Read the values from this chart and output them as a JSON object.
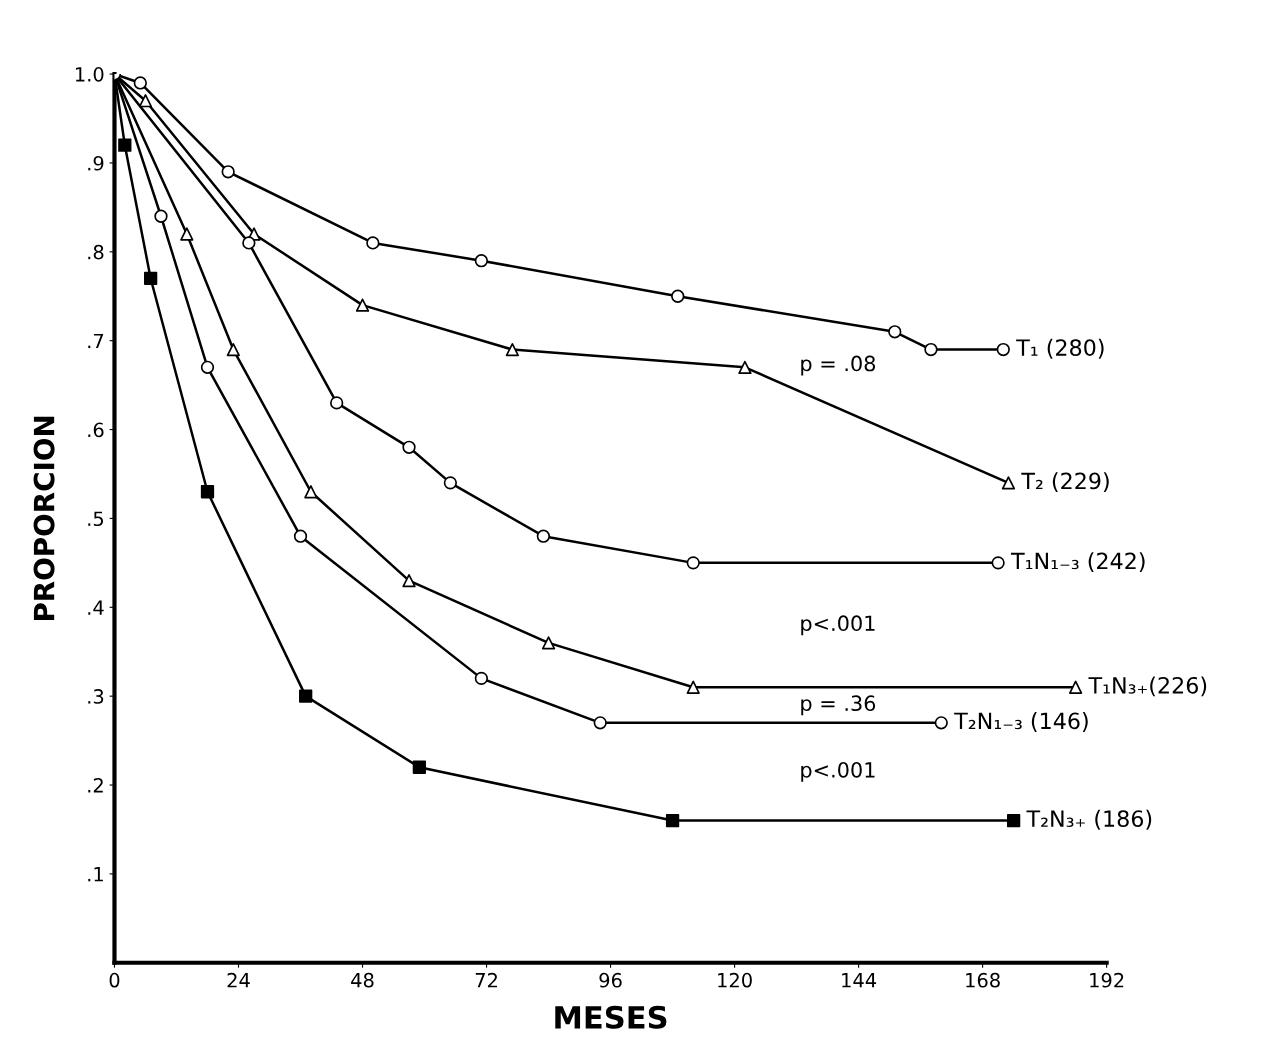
{
  "chart_data": {
    "type": "line",
    "xlabel": "MESES",
    "ylabel": "PROPORCION",
    "xlim": [
      0,
      192
    ],
    "xticks": [
      0,
      24,
      48,
      72,
      96,
      120,
      144,
      168,
      192
    ],
    "ylim": [
      0,
      1.0
    ],
    "yticks": [
      {
        "value": 0.1,
        "label": ".1"
      },
      {
        "value": 0.2,
        "label": ".2"
      },
      {
        "value": 0.3,
        "label": ".3"
      },
      {
        "value": 0.4,
        "label": ".4"
      },
      {
        "value": 0.5,
        "label": ".5"
      },
      {
        "value": 0.6,
        "label": ".6"
      },
      {
        "value": 0.7,
        "label": ".7"
      },
      {
        "value": 0.8,
        "label": ".8"
      },
      {
        "value": 0.9,
        "label": ".9"
      },
      {
        "value": 1.0,
        "label": "1.0"
      }
    ],
    "grid": false,
    "line_style": "solid",
    "series": [
      {
        "name": "T₁ (280)",
        "color": "#000000",
        "marker": "circle",
        "x": [
          0,
          5,
          22,
          50,
          71,
          109,
          151,
          158,
          172
        ],
        "values": [
          1.0,
          0.99,
          0.89,
          0.81,
          0.79,
          0.75,
          0.71,
          0.69,
          0.69
        ]
      },
      {
        "name": "T₂ (229)",
        "color": "#000000",
        "marker": "triangle",
        "x": [
          0,
          6,
          27,
          48,
          77,
          122,
          173
        ],
        "values": [
          1.0,
          0.97,
          0.82,
          0.74,
          0.69,
          0.67,
          0.54
        ]
      },
      {
        "name": "T₁N₁₋₃ (242)",
        "color": "#000000",
        "marker": "circle",
        "x": [
          0,
          26,
          43,
          57,
          65,
          83,
          112,
          171
        ],
        "values": [
          1.0,
          0.81,
          0.63,
          0.58,
          0.54,
          0.48,
          0.45,
          0.45
        ]
      },
      {
        "name": "T₁N₃₊(226)",
        "color": "#000000",
        "marker": "triangle",
        "x": [
          0,
          14,
          23,
          38,
          57,
          84,
          112,
          186
        ],
        "values": [
          1.0,
          0.82,
          0.69,
          0.53,
          0.43,
          0.36,
          0.31,
          0.31
        ]
      },
      {
        "name": "T₂N₁₋₃ (146)",
        "color": "#000000",
        "marker": "circle",
        "x": [
          0,
          9,
          18,
          36,
          71,
          94,
          160
        ],
        "values": [
          1.0,
          0.84,
          0.67,
          0.48,
          0.32,
          0.27,
          0.27
        ]
      },
      {
        "name": "T₂N₃₊ (186)",
        "color": "#000000",
        "marker": "square",
        "x": [
          0,
          2,
          7,
          18,
          37,
          59,
          108,
          174
        ],
        "values": [
          1.0,
          0.92,
          0.77,
          0.53,
          0.3,
          0.22,
          0.16,
          0.16
        ]
      }
    ],
    "annotations": [
      "p = .08",
      "p<.001",
      "p = .36",
      "p<.001"
    ]
  }
}
